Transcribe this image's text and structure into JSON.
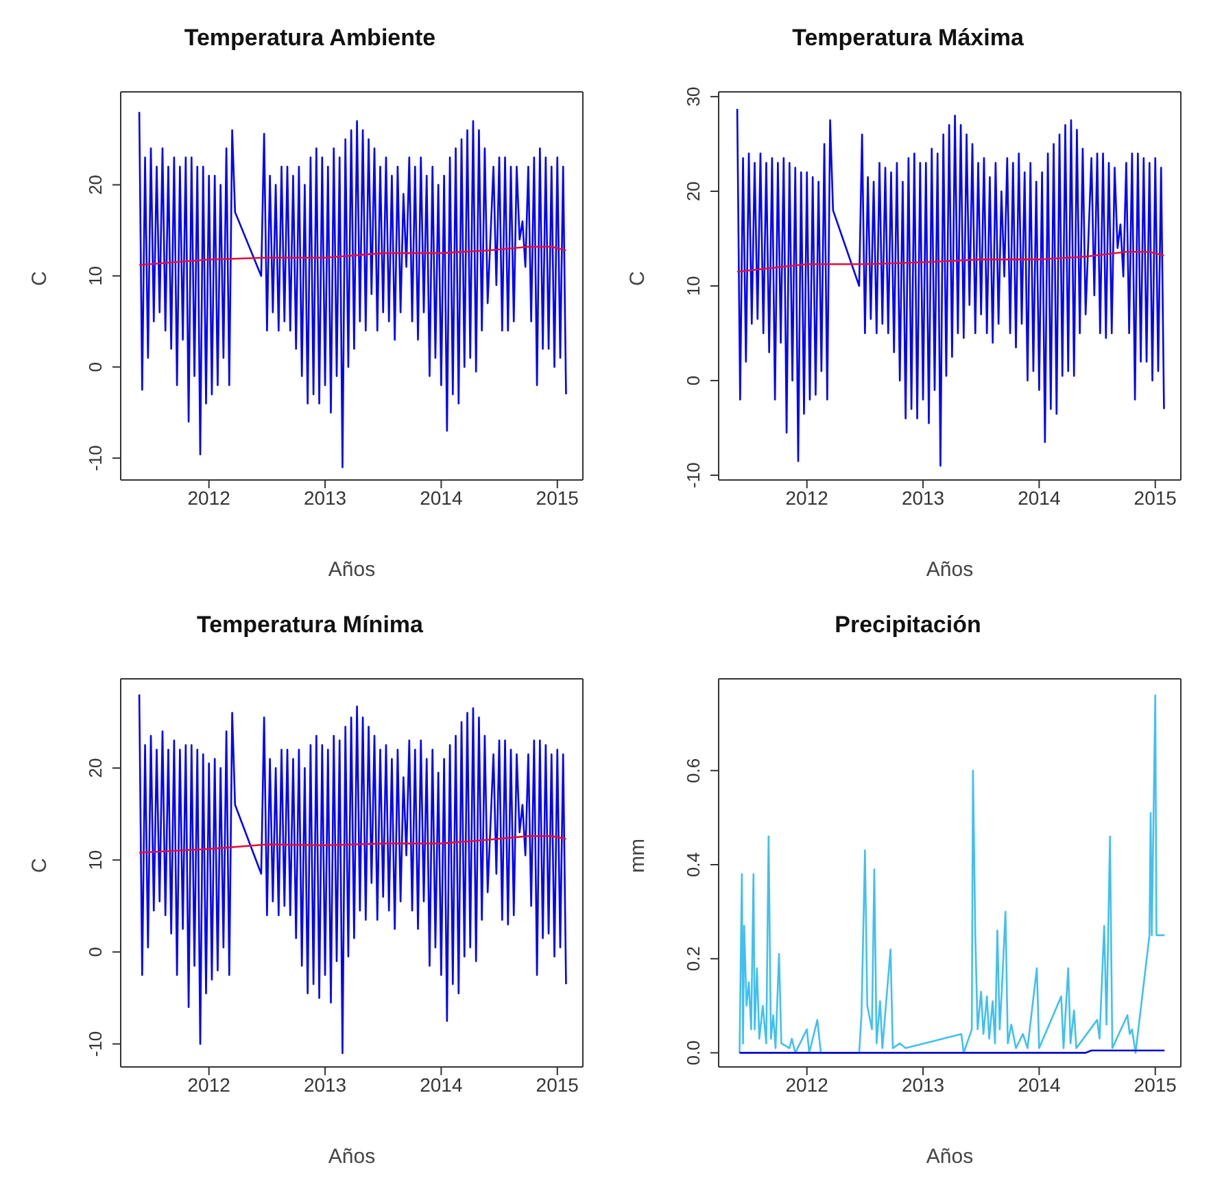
{
  "chart_data": [
    {
      "type": "line",
      "title": "Temperatura Ambiente",
      "xlabel": "Años",
      "ylabel": "C",
      "xlim": [
        2011.24,
        2015.22
      ],
      "xticks": [
        2012,
        2013,
        2014,
        2015
      ],
      "ylim": [
        -12.4,
        30.2
      ],
      "yticks": [
        -10,
        0,
        10,
        20
      ],
      "x": [
        2011.4,
        2011.425,
        2011.45,
        2011.475,
        2011.5,
        2011.525,
        2011.55,
        2011.575,
        2011.6,
        2011.625,
        2011.65,
        2011.675,
        2011.7,
        2011.725,
        2011.75,
        2011.775,
        2011.8,
        2011.825,
        2011.85,
        2011.875,
        2011.9,
        2011.925,
        2011.95,
        2011.975,
        2012,
        2012.025,
        2012.05,
        2012.075,
        2012.1,
        2012.125,
        2012.15,
        2012.175,
        2012.2,
        2012.225,
        2012.45,
        2012.475,
        2012.5,
        2012.525,
        2012.55,
        2012.575,
        2012.6,
        2012.625,
        2012.65,
        2012.675,
        2012.7,
        2012.725,
        2012.75,
        2012.775,
        2012.8,
        2012.825,
        2012.85,
        2012.875,
        2012.9,
        2012.925,
        2012.95,
        2012.975,
        2013,
        2013.025,
        2013.05,
        2013.075,
        2013.1,
        2013.125,
        2013.15,
        2013.175,
        2013.2,
        2013.225,
        2013.25,
        2013.275,
        2013.3,
        2013.325,
        2013.35,
        2013.375,
        2013.4,
        2013.425,
        2013.45,
        2013.475,
        2013.5,
        2013.525,
        2013.55,
        2013.575,
        2013.6,
        2013.625,
        2013.65,
        2013.675,
        2013.7,
        2013.725,
        2013.75,
        2013.775,
        2013.8,
        2013.825,
        2013.85,
        2013.875,
        2013.9,
        2013.925,
        2013.95,
        2013.975,
        2014,
        2014.025,
        2014.05,
        2014.075,
        2014.1,
        2014.125,
        2014.15,
        2014.175,
        2014.2,
        2014.225,
        2014.25,
        2014.275,
        2014.3,
        2014.325,
        2014.35,
        2014.375,
        2014.4,
        2014.45,
        2014.475,
        2014.5,
        2014.525,
        2014.55,
        2014.575,
        2014.6,
        2014.625,
        2014.65,
        2014.675,
        2014.7,
        2014.725,
        2014.75,
        2014.775,
        2014.8,
        2014.825,
        2014.85,
        2014.875,
        2014.9,
        2014.925,
        2014.95,
        2014.975,
        2015,
        2015.025,
        2015.05,
        2015.075
      ],
      "series": [
        {
          "color": "#0000ff",
          "values": [
            28,
            -2.5,
            23,
            1,
            24,
            5,
            22,
            6,
            24,
            4,
            22,
            2,
            23,
            -2,
            22,
            3,
            23,
            -6,
            23,
            -1,
            22,
            -9.6,
            22,
            -4,
            21,
            -3,
            21,
            -2,
            20,
            1,
            24,
            -2,
            26,
            17,
            10,
            25.6,
            4,
            21,
            6,
            20,
            4,
            22,
            5,
            22,
            4,
            21,
            2,
            22,
            -1,
            20,
            -4,
            23,
            -3,
            24,
            -4,
            23,
            -2,
            22,
            -5,
            24,
            -1,
            23,
            -11,
            25,
            0,
            26,
            2,
            27,
            5,
            26,
            4,
            25,
            8,
            24,
            4,
            22,
            6,
            23,
            5,
            21,
            3,
            22,
            6,
            19,
            11,
            23,
            5,
            22,
            3,
            23,
            6,
            21,
            -1,
            22,
            1,
            20,
            -2,
            21,
            -7,
            23,
            -3,
            24,
            -4,
            25,
            0,
            26,
            1,
            27,
            -0.5,
            26,
            4,
            24,
            7,
            22,
            9,
            23,
            4,
            23,
            4,
            22,
            5,
            22,
            14,
            16,
            11,
            22,
            5,
            23,
            -2,
            24,
            2,
            23,
            2,
            22,
            0,
            23,
            1,
            22,
            -3
          ]
        },
        {
          "color": "#e0103a",
          "x": [
            2011.4,
            2012,
            2012.5,
            2013,
            2013.5,
            2014,
            2014.4,
            2014.75,
            2014.95,
            2015.075
          ],
          "values": [
            11.2,
            11.8,
            12,
            12,
            12.5,
            12.5,
            12.8,
            13.2,
            13.2,
            12.8
          ]
        }
      ]
    },
    {
      "type": "line",
      "title": "Temperatura Máxima",
      "xlabel": "Años",
      "ylabel": "C",
      "xlim": [
        2011.24,
        2015.22
      ],
      "xticks": [
        2012,
        2013,
        2014,
        2015
      ],
      "ylim": [
        -10.5,
        30.5
      ],
      "yticks": [
        -10,
        0,
        10,
        20,
        30
      ],
      "x": [
        2011.4,
        2011.425,
        2011.45,
        2011.475,
        2011.5,
        2011.525,
        2011.55,
        2011.575,
        2011.6,
        2011.625,
        2011.65,
        2011.675,
        2011.7,
        2011.725,
        2011.75,
        2011.775,
        2011.8,
        2011.825,
        2011.85,
        2011.875,
        2011.9,
        2011.925,
        2011.95,
        2011.975,
        2012,
        2012.025,
        2012.05,
        2012.075,
        2012.1,
        2012.125,
        2012.15,
        2012.175,
        2012.2,
        2012.225,
        2012.45,
        2012.475,
        2012.5,
        2012.525,
        2012.55,
        2012.575,
        2012.6,
        2012.625,
        2012.65,
        2012.675,
        2012.7,
        2012.725,
        2012.75,
        2012.775,
        2012.8,
        2012.825,
        2012.85,
        2012.875,
        2012.9,
        2012.925,
        2012.95,
        2012.975,
        2013,
        2013.025,
        2013.05,
        2013.075,
        2013.1,
        2013.125,
        2013.15,
        2013.175,
        2013.2,
        2013.225,
        2013.25,
        2013.275,
        2013.3,
        2013.325,
        2013.35,
        2013.375,
        2013.4,
        2013.425,
        2013.45,
        2013.475,
        2013.5,
        2013.525,
        2013.55,
        2013.575,
        2013.6,
        2013.625,
        2013.65,
        2013.675,
        2013.7,
        2013.725,
        2013.75,
        2013.775,
        2013.8,
        2013.825,
        2013.85,
        2013.875,
        2013.9,
        2013.925,
        2013.95,
        2013.975,
        2014,
        2014.025,
        2014.05,
        2014.075,
        2014.1,
        2014.125,
        2014.15,
        2014.175,
        2014.2,
        2014.225,
        2014.25,
        2014.275,
        2014.3,
        2014.325,
        2014.35,
        2014.375,
        2014.4,
        2014.45,
        2014.475,
        2014.5,
        2014.525,
        2014.55,
        2014.575,
        2014.6,
        2014.625,
        2014.65,
        2014.675,
        2014.7,
        2014.725,
        2014.75,
        2014.775,
        2014.8,
        2014.825,
        2014.85,
        2014.875,
        2014.9,
        2014.925,
        2014.95,
        2014.975,
        2015,
        2015.025,
        2015.05,
        2015.075
      ],
      "series": [
        {
          "color": "#0000ff",
          "values": [
            28.7,
            -2,
            23.5,
            2,
            24,
            6,
            23,
            6.5,
            24,
            5,
            23,
            3,
            23.5,
            -2,
            23,
            4,
            23.5,
            -5.5,
            23,
            0,
            22.5,
            -8.5,
            22,
            -3.5,
            22,
            -2,
            21.5,
            -1.5,
            21,
            1,
            25,
            -2,
            27.5,
            18,
            10,
            26,
            5,
            21.5,
            6.5,
            21,
            5,
            23,
            6,
            22.5,
            5,
            22,
            3,
            23,
            0,
            21,
            -4,
            23.5,
            -3,
            24,
            -4,
            23,
            -2,
            23,
            -4.5,
            24.5,
            -1,
            24,
            -9,
            26,
            0.5,
            27,
            2.5,
            28,
            5,
            27,
            4.5,
            26,
            8,
            25,
            5,
            23,
            7,
            23.5,
            5,
            21.5,
            4,
            23,
            6,
            20,
            11,
            23.5,
            5,
            23,
            3.5,
            24,
            6,
            22,
            0,
            23,
            1,
            21,
            -1,
            22,
            -6.5,
            24,
            -3,
            25,
            -3.5,
            26,
            0.5,
            27,
            1,
            27.5,
            0.5,
            26.5,
            5,
            24.5,
            7,
            23.5,
            9,
            24,
            5,
            24,
            4.5,
            23,
            5,
            22.5,
            14,
            16.5,
            11,
            23,
            5,
            24,
            -2,
            24,
            2,
            23.5,
            2,
            23,
            0,
            23.5,
            1,
            22.5,
            -3
          ]
        },
        {
          "color": "#e0103a",
          "x": [
            2011.4,
            2012,
            2012.5,
            2013,
            2013.5,
            2014,
            2014.4,
            2014.75,
            2014.95,
            2015.075
          ],
          "values": [
            11.5,
            12.3,
            12.3,
            12.5,
            12.8,
            12.8,
            13.1,
            13.6,
            13.6,
            13.2
          ]
        }
      ]
    },
    {
      "type": "line",
      "title": "Temperatura Mínima",
      "xlabel": "Años",
      "ylabel": "C",
      "xlim": [
        2011.24,
        2015.22
      ],
      "xticks": [
        2012,
        2013,
        2014,
        2015
      ],
      "ylim": [
        -12.5,
        29.7
      ],
      "yticks": [
        -10,
        0,
        10,
        20
      ],
      "x": [
        2011.4,
        2011.425,
        2011.45,
        2011.475,
        2011.5,
        2011.525,
        2011.55,
        2011.575,
        2011.6,
        2011.625,
        2011.65,
        2011.675,
        2011.7,
        2011.725,
        2011.75,
        2011.775,
        2011.8,
        2011.825,
        2011.85,
        2011.875,
        2011.9,
        2011.925,
        2011.95,
        2011.975,
        2012,
        2012.025,
        2012.05,
        2012.075,
        2012.1,
        2012.125,
        2012.15,
        2012.175,
        2012.2,
        2012.225,
        2012.45,
        2012.475,
        2012.5,
        2012.525,
        2012.55,
        2012.575,
        2012.6,
        2012.625,
        2012.65,
        2012.675,
        2012.7,
        2012.725,
        2012.75,
        2012.775,
        2012.8,
        2012.825,
        2012.85,
        2012.875,
        2012.9,
        2012.925,
        2012.95,
        2012.975,
        2013,
        2013.025,
        2013.05,
        2013.075,
        2013.1,
        2013.125,
        2013.15,
        2013.175,
        2013.2,
        2013.225,
        2013.25,
        2013.275,
        2013.3,
        2013.325,
        2013.35,
        2013.375,
        2013.4,
        2013.425,
        2013.45,
        2013.475,
        2013.5,
        2013.525,
        2013.55,
        2013.575,
        2013.6,
        2013.625,
        2013.65,
        2013.675,
        2013.7,
        2013.725,
        2013.75,
        2013.775,
        2013.8,
        2013.825,
        2013.85,
        2013.875,
        2013.9,
        2013.925,
        2013.95,
        2013.975,
        2014,
        2014.025,
        2014.05,
        2014.075,
        2014.1,
        2014.125,
        2014.15,
        2014.175,
        2014.2,
        2014.225,
        2014.25,
        2014.275,
        2014.3,
        2014.325,
        2014.35,
        2014.375,
        2014.4,
        2014.45,
        2014.475,
        2014.5,
        2014.525,
        2014.55,
        2014.575,
        2014.6,
        2014.625,
        2014.65,
        2014.675,
        2014.7,
        2014.725,
        2014.75,
        2014.775,
        2014.8,
        2014.825,
        2014.85,
        2014.875,
        2014.9,
        2014.925,
        2014.95,
        2014.975,
        2015,
        2015.025,
        2015.05,
        2015.075
      ],
      "series": [
        {
          "color": "#0000ff",
          "values": [
            28,
            -2.5,
            22.5,
            0.5,
            23.5,
            4.5,
            22,
            5.5,
            24,
            4,
            22,
            2,
            23,
            -2.5,
            22,
            2.5,
            22.5,
            -6,
            22.5,
            -1.5,
            22,
            -10,
            21.5,
            -4.5,
            20.5,
            -3,
            21,
            -2,
            20,
            0.5,
            24,
            -2.5,
            26,
            16,
            8.5,
            25.5,
            4,
            21,
            5.5,
            20,
            4,
            22,
            5,
            22,
            4,
            21,
            1.5,
            22,
            -1.5,
            20,
            -4.5,
            22.5,
            -3.5,
            23.5,
            -5,
            22.5,
            -2.5,
            22,
            -5.5,
            23.5,
            -1,
            23,
            -11,
            24.5,
            -0.5,
            25.5,
            1.5,
            26.7,
            4.5,
            25.5,
            3.5,
            24.5,
            7.5,
            23.5,
            3.5,
            22,
            6,
            22.5,
            4.5,
            21,
            2.5,
            22,
            5.5,
            19,
            10.5,
            23,
            4.5,
            22,
            2.5,
            23,
            5.5,
            21,
            -1.5,
            22,
            0.5,
            19.5,
            -2.5,
            21,
            -7.5,
            22.5,
            -3.5,
            23.5,
            -4.5,
            25,
            -0.5,
            26,
            0.5,
            26.5,
            -1,
            25.5,
            3.5,
            23.5,
            6.5,
            21.5,
            8.5,
            23,
            3.5,
            23,
            3,
            22,
            4,
            21.5,
            13,
            16,
            10.5,
            21.5,
            5,
            23,
            -2.5,
            23,
            1.5,
            22.5,
            2,
            21.5,
            -0.5,
            22,
            0.5,
            21.5,
            -3.5
          ]
        },
        {
          "color": "#e0103a",
          "x": [
            2011.4,
            2012,
            2012.5,
            2013,
            2013.5,
            2014,
            2014.4,
            2014.75,
            2014.95,
            2015.075
          ],
          "values": [
            10.8,
            11.2,
            11.7,
            11.6,
            11.8,
            11.8,
            12.2,
            12.6,
            12.6,
            12.3
          ]
        }
      ]
    },
    {
      "type": "line",
      "title": "Precipitación",
      "xlabel": "Años",
      "ylabel": "mm",
      "xlim": [
        2011.24,
        2015.22
      ],
      "xticks": [
        2012,
        2013,
        2014,
        2015
      ],
      "ylim": [
        -0.03,
        0.795
      ],
      "yticks": [
        {
          "value": 0,
          "label": "0.0"
        },
        {
          "value": 0.2,
          "label": "0.2"
        },
        {
          "value": 0.4,
          "label": "0.4"
        },
        {
          "value": 0.6,
          "label": "0.6"
        }
      ],
      "series": [
        {
          "color": "#40c0f0",
          "x": [
            2011.42,
            2011.44,
            2011.45,
            2011.46,
            2011.48,
            2011.5,
            2011.52,
            2011.54,
            2011.55,
            2011.57,
            2011.59,
            2011.62,
            2011.65,
            2011.67,
            2011.69,
            2011.71,
            2011.73,
            2011.76,
            2011.78,
            2011.85,
            2011.87,
            2011.9,
            2012,
            2012.02,
            2012.09,
            2012.12,
            2012.45,
            2012.47,
            2012.5,
            2012.52,
            2012.56,
            2012.58,
            2012.6,
            2012.63,
            2012.65,
            2012.72,
            2012.74,
            2012.8,
            2012.85,
            2013.33,
            2013.35,
            2013.42,
            2013.43,
            2013.44,
            2013.45,
            2013.47,
            2013.5,
            2013.52,
            2013.55,
            2013.57,
            2013.6,
            2013.62,
            2013.64,
            2013.66,
            2013.68,
            2013.71,
            2013.73,
            2013.76,
            2013.8,
            2013.86,
            2013.9,
            2013.98,
            2014,
            2014.19,
            2014.21,
            2014.25,
            2014.27,
            2014.3,
            2014.32,
            2014.5,
            2014.52,
            2014.56,
            2014.58,
            2014.61,
            2014.63,
            2014.76,
            2014.78,
            2014.8,
            2014.83,
            2014.95,
            2014.96,
            2014.97,
            2015,
            2015.01,
            2015.08
          ],
          "values": [
            0,
            0.38,
            0.02,
            0.27,
            0.1,
            0.15,
            0.05,
            0.38,
            0.05,
            0.18,
            0.03,
            0.1,
            0.02,
            0.46,
            0.03,
            0.08,
            0.01,
            0.21,
            0.02,
            0.01,
            0.03,
            0,
            0.05,
            0,
            0.07,
            0,
            0,
            0.08,
            0.43,
            0.1,
            0.05,
            0.39,
            0.02,
            0.11,
            0.01,
            0.22,
            0.01,
            0.02,
            0.01,
            0.04,
            0,
            0.05,
            0.6,
            0.43,
            0.25,
            0.05,
            0.13,
            0.04,
            0.12,
            0.03,
            0.11,
            0.02,
            0.26,
            0.05,
            0.14,
            0.3,
            0.02,
            0.06,
            0.01,
            0.04,
            0.01,
            0.18,
            0.01,
            0.12,
            0.01,
            0.18,
            0.02,
            0.09,
            0.01,
            0.07,
            0.03,
            0.27,
            0.06,
            0.46,
            0.01,
            0.08,
            0.04,
            0.05,
            0,
            0.25,
            0.51,
            0.25,
            0.76,
            0.25,
            0.25
          ]
        },
        {
          "color": "#0000cc",
          "x": [
            2011.42,
            2014.4,
            2014.45,
            2015.08
          ],
          "values": [
            0,
            0,
            0.005,
            0.005
          ]
        }
      ]
    }
  ]
}
